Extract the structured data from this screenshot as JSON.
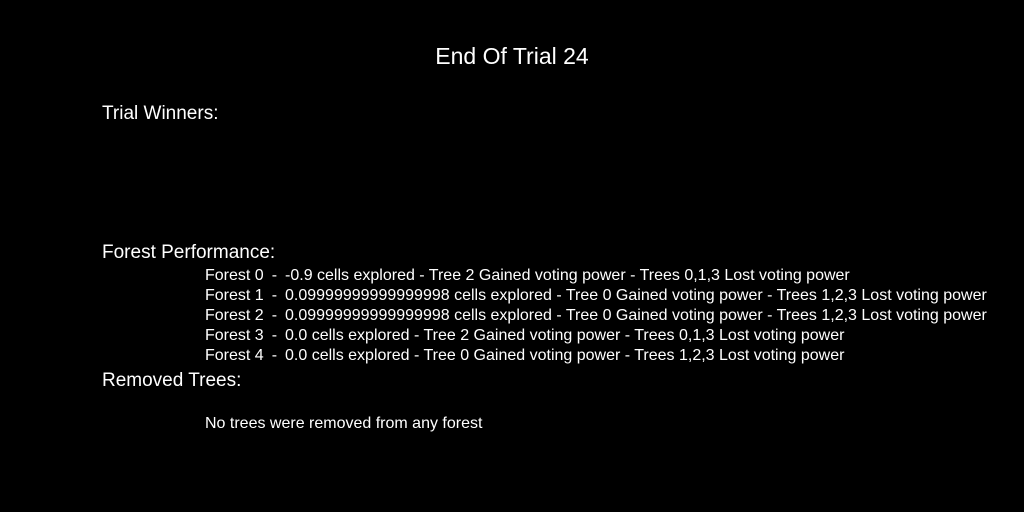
{
  "title": "End Of Trial 24",
  "sections": {
    "winners": {
      "heading": "Trial Winners:"
    },
    "performance": {
      "heading": "Forest Performance:",
      "rows": [
        {
          "name": "Forest 0",
          "sep": "-",
          "detail": "-0.9 cells explored - Tree 2 Gained voting power - Trees 0,1,3 Lost voting power"
        },
        {
          "name": "Forest 1",
          "sep": "-",
          "detail": "0.09999999999999998 cells explored - Tree 0 Gained voting power - Trees 1,2,3 Lost voting power"
        },
        {
          "name": "Forest 2",
          "sep": "-",
          "detail": "0.09999999999999998 cells explored - Tree 0 Gained voting power - Trees 1,2,3 Lost voting power"
        },
        {
          "name": "Forest 3",
          "sep": "-",
          "detail": "0.0 cells explored - Tree 2 Gained voting power - Trees 0,1,3 Lost voting power"
        },
        {
          "name": "Forest 4",
          "sep": "-",
          "detail": "0.0 cells explored - Tree 0 Gained voting power - Trees 1,2,3 Lost voting power"
        }
      ]
    },
    "removed": {
      "heading": "Removed Trees:",
      "message": "No trees were removed from any forest"
    }
  }
}
